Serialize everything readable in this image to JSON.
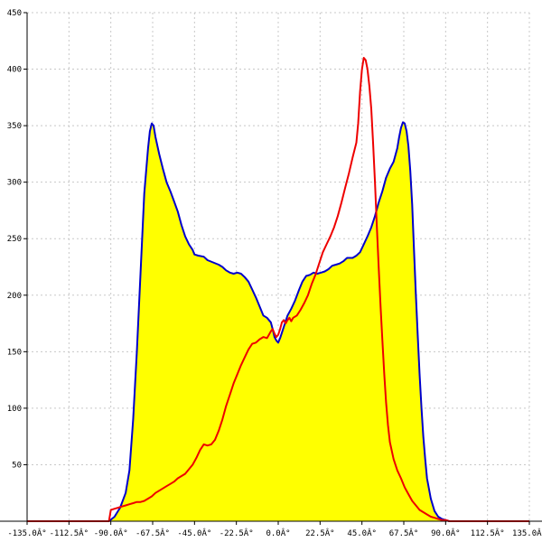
{
  "chart_data": {
    "type": "area",
    "x_unit": "degrees",
    "xlim": [
      -135,
      135
    ],
    "ylim": [
      0,
      450
    ],
    "x_ticks": [
      -135,
      -112.5,
      -90,
      -67.5,
      -45,
      -22.5,
      0,
      22.5,
      45,
      67.5,
      90,
      112.5,
      135
    ],
    "x_tick_labels": [
      "-135.0Â°",
      "-112.5Â°",
      "-90.0Â°",
      "-67.5Â°",
      "-45.0Â°",
      "-22.5Â°",
      "0.0Â°",
      "22.5Â°",
      "45.0Â°",
      "67.5Â°",
      "90.0Â°",
      "112.5Â°",
      "135.0Â°"
    ],
    "y_ticks": [
      50,
      100,
      150,
      200,
      250,
      300,
      350,
      400,
      450
    ],
    "y_tick_labels": [
      "50",
      "100",
      "150",
      "200",
      "250",
      "300",
      "350",
      "400",
      "450"
    ],
    "grid": true,
    "colors": {
      "fill": "#ffff00",
      "blue_line": "#0000cc",
      "red_line": "#ee0000",
      "grid": "#c8c8c8"
    },
    "series": [
      {
        "style": "filled-area-blue-outline",
        "points": [
          [
            -135,
            0
          ],
          [
            -91,
            0
          ],
          [
            -88,
            4
          ],
          [
            -85,
            12
          ],
          [
            -82,
            25
          ],
          [
            -80,
            45
          ],
          [
            -78,
            90
          ],
          [
            -76,
            150
          ],
          [
            -74,
            220
          ],
          [
            -72,
            290
          ],
          [
            -70,
            330
          ],
          [
            -69,
            345
          ],
          [
            -68,
            352
          ],
          [
            -67,
            350
          ],
          [
            -66,
            340
          ],
          [
            -64,
            325
          ],
          [
            -62,
            312
          ],
          [
            -60,
            300
          ],
          [
            -58,
            292
          ],
          [
            -56,
            283
          ],
          [
            -54,
            274
          ],
          [
            -52,
            262
          ],
          [
            -50,
            252
          ],
          [
            -48,
            245
          ],
          [
            -46,
            240
          ],
          [
            -45,
            236
          ],
          [
            -43,
            235
          ],
          [
            -40,
            234
          ],
          [
            -38,
            231
          ],
          [
            -35,
            229
          ],
          [
            -32,
            227
          ],
          [
            -30,
            225
          ],
          [
            -28,
            222
          ],
          [
            -26,
            220
          ],
          [
            -24,
            219
          ],
          [
            -22,
            220
          ],
          [
            -20,
            219
          ],
          [
            -18,
            216
          ],
          [
            -16,
            212
          ],
          [
            -14,
            205
          ],
          [
            -12,
            198
          ],
          [
            -10,
            190
          ],
          [
            -8,
            182
          ],
          [
            -6,
            180
          ],
          [
            -4,
            176
          ],
          [
            -3,
            170
          ],
          [
            -2,
            163
          ],
          [
            -1,
            160
          ],
          [
            0,
            158
          ],
          [
            1,
            162
          ],
          [
            3,
            172
          ],
          [
            5,
            182
          ],
          [
            7,
            188
          ],
          [
            9,
            195
          ],
          [
            11,
            204
          ],
          [
            13,
            212
          ],
          [
            15,
            217
          ],
          [
            17,
            218
          ],
          [
            19,
            220
          ],
          [
            21,
            219
          ],
          [
            23,
            220
          ],
          [
            25,
            221
          ],
          [
            27,
            223
          ],
          [
            29,
            226
          ],
          [
            31,
            227
          ],
          [
            33,
            228
          ],
          [
            35,
            230
          ],
          [
            37,
            233
          ],
          [
            40,
            233
          ],
          [
            42,
            235
          ],
          [
            44,
            238
          ],
          [
            46,
            245
          ],
          [
            48,
            252
          ],
          [
            50,
            260
          ],
          [
            52,
            270
          ],
          [
            54,
            282
          ],
          [
            56,
            292
          ],
          [
            58,
            304
          ],
          [
            60,
            312
          ],
          [
            62,
            318
          ],
          [
            64,
            330
          ],
          [
            65,
            340
          ],
          [
            66,
            348
          ],
          [
            67,
            353
          ],
          [
            68,
            352
          ],
          [
            69,
            345
          ],
          [
            70,
            332
          ],
          [
            71,
            310
          ],
          [
            72,
            280
          ],
          [
            73,
            240
          ],
          [
            74,
            200
          ],
          [
            75,
            165
          ],
          [
            76,
            130
          ],
          [
            77,
            100
          ],
          [
            78,
            75
          ],
          [
            79,
            55
          ],
          [
            80,
            38
          ],
          [
            82,
            20
          ],
          [
            84,
            9
          ],
          [
            86,
            4
          ],
          [
            88,
            2
          ],
          [
            90,
            1
          ],
          [
            92,
            0
          ],
          [
            135,
            0
          ]
        ]
      },
      {
        "style": "line-red",
        "points": [
          [
            -135,
            0
          ],
          [
            -91,
            0
          ],
          [
            -90,
            10
          ],
          [
            -88,
            11
          ],
          [
            -86,
            12
          ],
          [
            -84,
            13
          ],
          [
            -82,
            14
          ],
          [
            -80,
            15
          ],
          [
            -78,
            16
          ],
          [
            -76,
            17
          ],
          [
            -74,
            17
          ],
          [
            -72,
            18
          ],
          [
            -70,
            20
          ],
          [
            -68,
            22
          ],
          [
            -66,
            25
          ],
          [
            -64,
            27
          ],
          [
            -62,
            29
          ],
          [
            -60,
            31
          ],
          [
            -58,
            33
          ],
          [
            -56,
            35
          ],
          [
            -54,
            38
          ],
          [
            -52,
            40
          ],
          [
            -50,
            42
          ],
          [
            -48,
            46
          ],
          [
            -46,
            50
          ],
          [
            -44,
            56
          ],
          [
            -42,
            63
          ],
          [
            -40,
            68
          ],
          [
            -38,
            67
          ],
          [
            -36,
            68
          ],
          [
            -34,
            72
          ],
          [
            -32,
            80
          ],
          [
            -30,
            90
          ],
          [
            -28,
            102
          ],
          [
            -26,
            112
          ],
          [
            -24,
            122
          ],
          [
            -22,
            130
          ],
          [
            -20,
            138
          ],
          [
            -18,
            145
          ],
          [
            -16,
            152
          ],
          [
            -14,
            157
          ],
          [
            -12,
            158
          ],
          [
            -10,
            161
          ],
          [
            -8,
            163
          ],
          [
            -6,
            162
          ],
          [
            -5,
            165
          ],
          [
            -4,
            168
          ],
          [
            -3,
            170
          ],
          [
            -2,
            166
          ],
          [
            -1,
            163
          ],
          [
            0,
            165
          ],
          [
            1,
            170
          ],
          [
            2,
            176
          ],
          [
            3,
            178
          ],
          [
            4,
            175
          ],
          [
            5,
            178
          ],
          [
            6,
            180
          ],
          [
            7,
            177
          ],
          [
            8,
            180
          ],
          [
            10,
            182
          ],
          [
            12,
            187
          ],
          [
            14,
            193
          ],
          [
            16,
            200
          ],
          [
            18,
            210
          ],
          [
            20,
            218
          ],
          [
            22,
            228
          ],
          [
            24,
            238
          ],
          [
            26,
            245
          ],
          [
            28,
            252
          ],
          [
            30,
            260
          ],
          [
            32,
            270
          ],
          [
            34,
            282
          ],
          [
            36,
            295
          ],
          [
            38,
            308
          ],
          [
            40,
            322
          ],
          [
            42,
            335
          ],
          [
            43,
            352
          ],
          [
            44,
            380
          ],
          [
            45,
            400
          ],
          [
            46,
            410
          ],
          [
            47,
            408
          ],
          [
            48,
            400
          ],
          [
            49,
            385
          ],
          [
            50,
            365
          ],
          [
            51,
            335
          ],
          [
            52,
            300
          ],
          [
            53,
            262
          ],
          [
            54,
            225
          ],
          [
            55,
            190
          ],
          [
            56,
            160
          ],
          [
            57,
            130
          ],
          [
            58,
            105
          ],
          [
            59,
            85
          ],
          [
            60,
            70
          ],
          [
            62,
            55
          ],
          [
            64,
            45
          ],
          [
            66,
            38
          ],
          [
            68,
            30
          ],
          [
            70,
            24
          ],
          [
            72,
            18
          ],
          [
            74,
            14
          ],
          [
            76,
            10
          ],
          [
            78,
            8
          ],
          [
            80,
            6
          ],
          [
            82,
            4
          ],
          [
            84,
            3
          ],
          [
            86,
            2
          ],
          [
            88,
            1
          ],
          [
            90,
            1
          ],
          [
            92,
            0
          ],
          [
            135,
            0
          ]
        ]
      }
    ]
  }
}
